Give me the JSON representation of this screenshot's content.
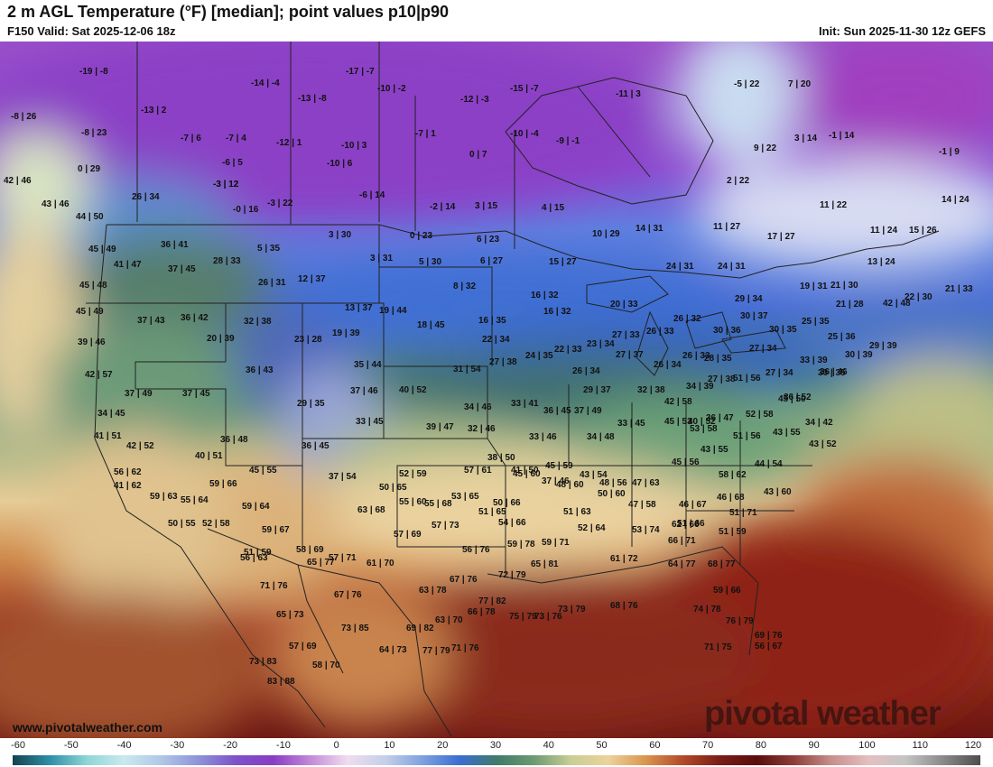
{
  "header": {
    "title": "2 m AGL Temperature (°F) [median]; point values p10|p90",
    "valid": "F150 Valid: Sat 2025-12-06 18z",
    "init": "Init: Sun 2025-11-30 12z GEFS"
  },
  "credit": "www.pivotalweather.com",
  "logo": "pivotal weather",
  "colorbar": {
    "ticks": [
      "-60",
      "-50",
      "-40",
      "-30",
      "-20",
      "-10",
      "0",
      "10",
      "20",
      "30",
      "40",
      "50",
      "60",
      "70",
      "80",
      "90",
      "100",
      "110",
      "120"
    ]
  },
  "point_values": [
    "-19|-8",
    "-14|-4",
    "-17|-7",
    "-10|-2",
    "-13|-8",
    "-12|-3",
    "-15|-7",
    "-11|3",
    "-5|22",
    "7|20",
    "-8|26",
    "-13|2",
    "-8|23",
    "-7|6",
    "-7|4",
    "-12|1",
    "-10|3",
    "-7|1",
    "-10|-4",
    "-9|-1",
    "9|22",
    "3|14",
    "-1|14",
    "-1|9",
    "0|29",
    "-6|5",
    "-10|6",
    "0|7",
    "-3|12",
    "42|46",
    "-3|12",
    "-0|16",
    "-3|22",
    "-6|14",
    "-2|14",
    "3|15",
    "4|15",
    "2|22",
    "11|22",
    "14|24",
    "26|34",
    "43|46",
    "44|50",
    "3|30",
    "0|23",
    "6|23",
    "10|29",
    "14|31",
    "11|27",
    "17|27",
    "11|24",
    "15|26",
    "36|41",
    "5|35",
    "3|31",
    "5|30",
    "6|27",
    "15|27",
    "13|24",
    "45|49",
    "41|47",
    "37|45",
    "28|33",
    "26|31",
    "12|37",
    "8|32",
    "24|31",
    "24|31",
    "19|31",
    "21|30",
    "45|48",
    "16|32",
    "20|33",
    "29|34",
    "22|30",
    "21|33",
    "13|37",
    "19|44",
    "16|32",
    "21|28",
    "45|49",
    "37|43",
    "36|42",
    "32|38",
    "23|28",
    "19|39",
    "18|45",
    "16|35",
    "26|32",
    "30|37",
    "30|35",
    "25|36",
    "42|48",
    "39|46",
    "20|39",
    "22|34",
    "22|33",
    "23|34",
    "27|33",
    "26|33",
    "30|36",
    "25|35",
    "29|39",
    "36|43",
    "35|44",
    "31|54",
    "27|38",
    "24|35",
    "27|37",
    "26|33",
    "27|34",
    "30|39",
    "42|57",
    "28|35",
    "37|49",
    "37|45",
    "37|46",
    "40|52",
    "26|34",
    "26|34",
    "27|38",
    "27|34",
    "33|39",
    "30|35",
    "29|35",
    "29|37",
    "32|38",
    "34|39",
    "51|56",
    "36|52",
    "36|46",
    "34|45",
    "34|46",
    "33|41",
    "36|45",
    "37|49",
    "42|58",
    "40|52",
    "33|45",
    "39|47",
    "32|46",
    "33|45",
    "36|47",
    "52|58",
    "45|50",
    "34|42",
    "41|51",
    "36|48",
    "36|45",
    "33|46",
    "34|48",
    "45|53",
    "53|58",
    "51|56",
    "43|55",
    "43|52",
    "42|52",
    "40|51",
    "38|50",
    "41|50",
    "37|46",
    "45|59",
    "45|56",
    "43|55",
    "44|54",
    "45|55",
    "37|54",
    "52|59",
    "57|61",
    "45|60",
    "43|54",
    "48|56",
    "47|63",
    "58|62",
    "56|62",
    "59|66",
    "50|65",
    "48|60",
    "50|60",
    "43|60",
    "41|62",
    "59|63",
    "55|64",
    "53|65",
    "50|66",
    "47|58",
    "46|67",
    "46|68",
    "59|64",
    "63|68",
    "55|60",
    "55|68",
    "51|65",
    "51|63",
    "51|66",
    "51|71",
    "50|55",
    "52|58",
    "59|67",
    "57|73",
    "54|66",
    "52|64",
    "53|74",
    "62|66",
    "51|59",
    "51|59",
    "57|71",
    "58|69",
    "57|69",
    "56|76",
    "59|78",
    "59|71",
    "66|71",
    "56|63",
    "65|77",
    "61|70",
    "65|81",
    "61|72",
    "64|77",
    "68|77",
    "72|79",
    "71|76",
    "67|76",
    "63|78",
    "67|76",
    "59|66",
    "77|82",
    "73|76",
    "74|78",
    "65|73",
    "63|70",
    "66|78",
    "75|79",
    "73|79",
    "68|76",
    "73|85",
    "69|82",
    "76|79",
    "69|76",
    "57|69",
    "64|73",
    "77|79",
    "71|76",
    "71|75",
    "56|67",
    "73|83",
    "83|88",
    "58|70"
  ]
}
